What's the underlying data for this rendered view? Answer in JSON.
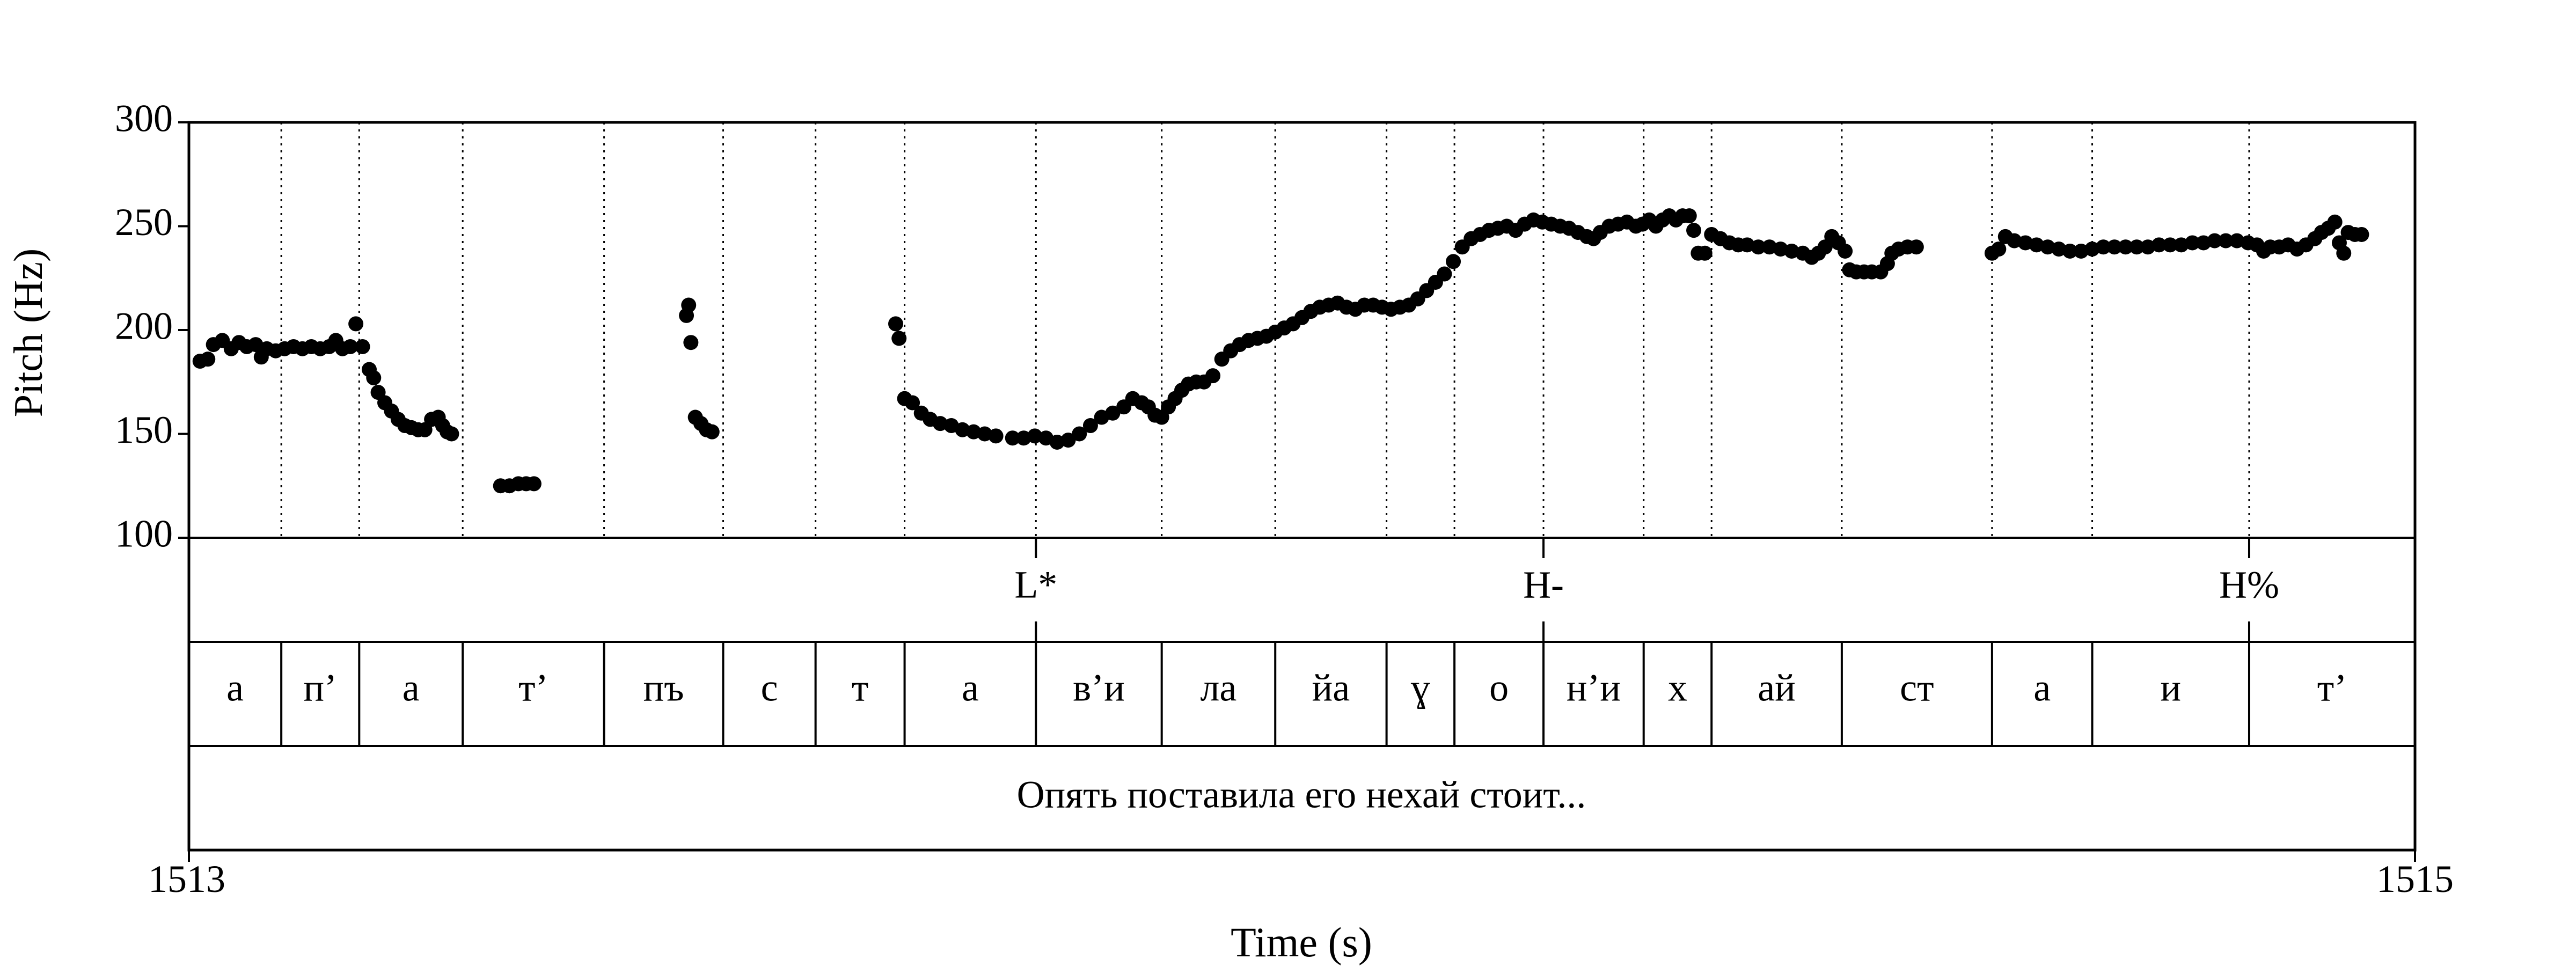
{
  "chart_data": {
    "type": "scatter",
    "xlabel": "Time (s)",
    "ylabel": "Pitch (Hz)",
    "xlim": [
      1513,
      1515
    ],
    "ylim": [
      100,
      300
    ],
    "x_ticks": [
      "1513",
      "1515"
    ],
    "y_ticks": [
      100,
      150,
      200,
      250,
      300
    ],
    "grid": "vertical dotted lines at segment boundaries",
    "tones": [
      {
        "label": "L*",
        "t": 1513.761
      },
      {
        "label": "H-",
        "t": 1514.217
      },
      {
        "label": "H%",
        "t": 1514.851
      }
    ],
    "segments": [
      {
        "label": "а",
        "start": 1513.0,
        "end": 1513.083
      },
      {
        "label": "п’",
        "start": 1513.083,
        "end": 1513.153
      },
      {
        "label": "а",
        "start": 1513.153,
        "end": 1513.246
      },
      {
        "label": "т’",
        "start": 1513.246,
        "end": 1513.373
      },
      {
        "label": "пъ",
        "start": 1513.373,
        "end": 1513.48
      },
      {
        "label": "с",
        "start": 1513.48,
        "end": 1513.563
      },
      {
        "label": "т",
        "start": 1513.563,
        "end": 1513.643
      },
      {
        "label": "а",
        "start": 1513.643,
        "end": 1513.761
      },
      {
        "label": "в’и",
        "start": 1513.761,
        "end": 1513.874
      },
      {
        "label": "ла",
        "start": 1513.874,
        "end": 1513.976
      },
      {
        "label": "йа",
        "start": 1513.976,
        "end": 1514.076
      },
      {
        "label": "ɣ",
        "start": 1514.076,
        "end": 1514.137
      },
      {
        "label": "о",
        "start": 1514.137,
        "end": 1514.217
      },
      {
        "label": "н’и",
        "start": 1514.217,
        "end": 1514.307
      },
      {
        "label": "х",
        "start": 1514.307,
        "end": 1514.368
      },
      {
        "label": "ай",
        "start": 1514.368,
        "end": 1514.485
      },
      {
        "label": "ст",
        "start": 1514.485,
        "end": 1514.62
      },
      {
        "label": "а",
        "start": 1514.62,
        "end": 1514.71
      },
      {
        "label": "и",
        "start": 1514.71,
        "end": 1514.851
      },
      {
        "label": "т’",
        "start": 1514.851,
        "end": 1515.0
      }
    ],
    "utterance": "Опять поставила его нехай стоит...",
    "pitch_contour": [
      [
        1513.01,
        185
      ],
      [
        1513.017,
        186
      ],
      [
        1513.022,
        193
      ],
      [
        1513.03,
        195
      ],
      [
        1513.038,
        191
      ],
      [
        1513.045,
        194
      ],
      [
        1513.052,
        192
      ],
      [
        1513.06,
        193
      ],
      [
        1513.065,
        187
      ],
      [
        1513.07,
        191
      ],
      [
        1513.078,
        190
      ],
      [
        1513.086,
        191
      ],
      [
        1513.094,
        192
      ],
      [
        1513.102,
        191
      ],
      [
        1513.11,
        192
      ],
      [
        1513.118,
        191
      ],
      [
        1513.126,
        192
      ],
      [
        1513.132,
        195
      ],
      [
        1513.138,
        191
      ],
      [
        1513.145,
        192
      ],
      [
        1513.15,
        203
      ],
      [
        1513.156,
        192
      ],
      [
        1513.162,
        181
      ],
      [
        1513.166,
        177
      ],
      [
        1513.17,
        170
      ],
      [
        1513.176,
        165
      ],
      [
        1513.182,
        161
      ],
      [
        1513.188,
        157
      ],
      [
        1513.194,
        154
      ],
      [
        1513.2,
        153
      ],
      [
        1513.206,
        152
      ],
      [
        1513.212,
        152
      ],
      [
        1513.218,
        157
      ],
      [
        1513.224,
        158
      ],
      [
        1513.228,
        154
      ],
      [
        1513.232,
        151
      ],
      [
        1513.236,
        150
      ],
      [
        1513.28,
        125
      ],
      [
        1513.288,
        125
      ],
      [
        1513.296,
        126
      ],
      [
        1513.303,
        126
      ],
      [
        1513.31,
        126
      ],
      [
        1513.447,
        207
      ],
      [
        1513.449,
        212
      ],
      [
        1513.451,
        194
      ],
      [
        1513.455,
        158
      ],
      [
        1513.46,
        155
      ],
      [
        1513.465,
        152
      ],
      [
        1513.47,
        151
      ],
      [
        1513.635,
        203
      ],
      [
        1513.638,
        196
      ],
      [
        1513.643,
        167
      ],
      [
        1513.65,
        165
      ],
      [
        1513.658,
        160
      ],
      [
        1513.666,
        157
      ],
      [
        1513.675,
        155
      ],
      [
        1513.685,
        154
      ],
      [
        1513.695,
        152
      ],
      [
        1513.705,
        151
      ],
      [
        1513.715,
        150
      ],
      [
        1513.725,
        149
      ],
      [
        1513.74,
        148
      ],
      [
        1513.75,
        148
      ],
      [
        1513.76,
        149
      ],
      [
        1513.77,
        148
      ],
      [
        1513.78,
        146
      ],
      [
        1513.79,
        147
      ],
      [
        1513.8,
        150
      ],
      [
        1513.81,
        154
      ],
      [
        1513.82,
        158
      ],
      [
        1513.83,
        160
      ],
      [
        1513.84,
        163
      ],
      [
        1513.848,
        167
      ],
      [
        1513.856,
        165
      ],
      [
        1513.862,
        163
      ],
      [
        1513.868,
        159
      ],
      [
        1513.874,
        158
      ],
      [
        1513.88,
        163
      ],
      [
        1513.886,
        167
      ],
      [
        1513.892,
        171
      ],
      [
        1513.898,
        174
      ],
      [
        1513.905,
        175
      ],
      [
        1513.912,
        175
      ],
      [
        1513.92,
        178
      ],
      [
        1513.928,
        186
      ],
      [
        1513.936,
        190
      ],
      [
        1513.944,
        193
      ],
      [
        1513.952,
        195
      ],
      [
        1513.96,
        196
      ],
      [
        1513.968,
        197
      ],
      [
        1513.976,
        199
      ],
      [
        1513.984,
        201
      ],
      [
        1513.992,
        203
      ],
      [
        1514.0,
        206
      ],
      [
        1514.008,
        209
      ],
      [
        1514.016,
        211
      ],
      [
        1514.024,
        212
      ],
      [
        1514.032,
        213
      ],
      [
        1514.04,
        211
      ],
      [
        1514.048,
        210
      ],
      [
        1514.056,
        212
      ],
      [
        1514.064,
        212
      ],
      [
        1514.072,
        211
      ],
      [
        1514.08,
        210
      ],
      [
        1514.088,
        211
      ],
      [
        1514.096,
        212
      ],
      [
        1514.104,
        215
      ],
      [
        1514.112,
        219
      ],
      [
        1514.12,
        223
      ],
      [
        1514.128,
        227
      ],
      [
        1514.136,
        233
      ],
      [
        1514.144,
        240
      ],
      [
        1514.152,
        244
      ],
      [
        1514.16,
        246
      ],
      [
        1514.168,
        248
      ],
      [
        1514.176,
        249
      ],
      [
        1514.184,
        250
      ],
      [
        1514.192,
        248
      ],
      [
        1514.2,
        251
      ],
      [
        1514.208,
        253
      ],
      [
        1514.216,
        252
      ],
      [
        1514.224,
        251
      ],
      [
        1514.232,
        250
      ],
      [
        1514.24,
        249
      ],
      [
        1514.248,
        247
      ],
      [
        1514.256,
        245
      ],
      [
        1514.262,
        244
      ],
      [
        1514.268,
        247
      ],
      [
        1514.276,
        250
      ],
      [
        1514.284,
        251
      ],
      [
        1514.292,
        252
      ],
      [
        1514.3,
        250
      ],
      [
        1514.306,
        251
      ],
      [
        1514.312,
        253
      ],
      [
        1514.318,
        250
      ],
      [
        1514.324,
        253
      ],
      [
        1514.33,
        255
      ],
      [
        1514.336,
        253
      ],
      [
        1514.342,
        255
      ],
      [
        1514.348,
        255
      ],
      [
        1514.352,
        248
      ],
      [
        1514.356,
        237
      ],
      [
        1514.362,
        237
      ],
      [
        1514.368,
        246
      ],
      [
        1514.376,
        244
      ],
      [
        1514.384,
        242
      ],
      [
        1514.392,
        241
      ],
      [
        1514.4,
        241
      ],
      [
        1514.41,
        240
      ],
      [
        1514.42,
        240
      ],
      [
        1514.43,
        239
      ],
      [
        1514.44,
        238
      ],
      [
        1514.45,
        237
      ],
      [
        1514.458,
        235
      ],
      [
        1514.464,
        237
      ],
      [
        1514.47,
        240
      ],
      [
        1514.476,
        245
      ],
      [
        1514.482,
        242
      ],
      [
        1514.488,
        238
      ],
      [
        1514.492,
        229
      ],
      [
        1514.498,
        228
      ],
      [
        1514.505,
        228
      ],
      [
        1514.512,
        228
      ],
      [
        1514.52,
        228
      ],
      [
        1514.526,
        232
      ],
      [
        1514.53,
        237
      ],
      [
        1514.536,
        239
      ],
      [
        1514.544,
        240
      ],
      [
        1514.552,
        240
      ],
      [
        1514.62,
        237
      ],
      [
        1514.626,
        239
      ],
      [
        1514.632,
        245
      ],
      [
        1514.64,
        243
      ],
      [
        1514.65,
        242
      ],
      [
        1514.66,
        241
      ],
      [
        1514.67,
        240
      ],
      [
        1514.68,
        239
      ],
      [
        1514.69,
        238
      ],
      [
        1514.7,
        238
      ],
      [
        1514.71,
        239
      ],
      [
        1514.72,
        240
      ],
      [
        1514.73,
        240
      ],
      [
        1514.74,
        240
      ],
      [
        1514.75,
        240
      ],
      [
        1514.76,
        240
      ],
      [
        1514.77,
        241
      ],
      [
        1514.78,
        241
      ],
      [
        1514.79,
        241
      ],
      [
        1514.8,
        242
      ],
      [
        1514.81,
        242
      ],
      [
        1514.82,
        243
      ],
      [
        1514.83,
        243
      ],
      [
        1514.84,
        243
      ],
      [
        1514.85,
        242
      ],
      [
        1514.858,
        241
      ],
      [
        1514.864,
        238
      ],
      [
        1514.87,
        240
      ],
      [
        1514.878,
        240
      ],
      [
        1514.886,
        241
      ],
      [
        1514.894,
        239
      ],
      [
        1514.902,
        241
      ],
      [
        1514.91,
        244
      ],
      [
        1514.916,
        247
      ],
      [
        1514.922,
        249
      ],
      [
        1514.928,
        252
      ],
      [
        1514.932,
        242
      ],
      [
        1514.936,
        237
      ],
      [
        1514.94,
        247
      ],
      [
        1514.946,
        246
      ],
      [
        1514.952,
        246
      ]
    ]
  }
}
